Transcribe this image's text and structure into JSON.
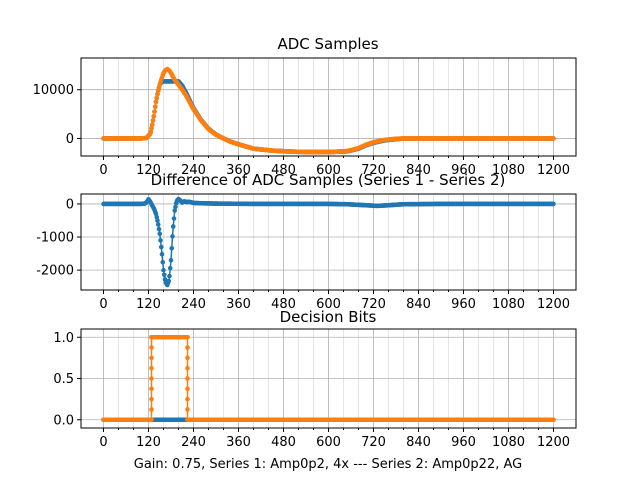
{
  "chart_data": [
    {
      "type": "scatter",
      "title": "ADC Samples",
      "x_ticks": [
        0,
        120,
        240,
        360,
        480,
        600,
        720,
        840,
        960,
        1080,
        1200
      ],
      "y_ticks": [
        0,
        10000
      ],
      "xlim": [
        -60,
        1260
      ],
      "ylim": [
        -3600,
        16500
      ],
      "grid": true,
      "series": [
        {
          "color": "#1f77b4",
          "x": [
            0,
            100,
            115,
            125,
            130,
            135,
            140,
            145,
            150,
            155,
            160,
            200,
            210,
            220,
            230,
            240,
            260,
            280,
            300,
            320,
            340,
            360,
            400,
            450,
            500,
            550,
            600,
            650,
            680,
            700,
            720,
            750,
            780,
            800,
            850,
            900,
            1000,
            1100,
            1200
          ],
          "y": [
            0,
            0,
            100,
            1000,
            2800,
            5000,
            7500,
            9500,
            11000,
            11600,
            11700,
            11700,
            10800,
            9400,
            7800,
            6200,
            3800,
            2000,
            800,
            0,
            -700,
            -1200,
            -2100,
            -2500,
            -2700,
            -2800,
            -2800,
            -2650,
            -2100,
            -1400,
            -900,
            -400,
            -150,
            -30,
            0,
            0,
            0,
            0,
            0
          ]
        },
        {
          "color": "#ff7f0e",
          "x": [
            0,
            100,
            115,
            125,
            130,
            135,
            140,
            145,
            150,
            155,
            160,
            165,
            170,
            175,
            180,
            185,
            190,
            200,
            210,
            220,
            230,
            240,
            260,
            280,
            300,
            320,
            340,
            360,
            400,
            450,
            500,
            550,
            600,
            650,
            680,
            700,
            720,
            750,
            780,
            800,
            850,
            900,
            1000,
            1100,
            1200
          ],
          "y": [
            0,
            0,
            100,
            1000,
            2800,
            5000,
            7500,
            9500,
            11000,
            12300,
            13400,
            14000,
            14200,
            14000,
            13400,
            12700,
            12000,
            11000,
            10000,
            8800,
            7400,
            6000,
            3700,
            1900,
            750,
            0,
            -700,
            -1200,
            -2100,
            -2500,
            -2700,
            -2800,
            -2800,
            -2600,
            -2000,
            -1300,
            -800,
            -300,
            -80,
            0,
            0,
            0,
            0,
            0,
            0
          ]
        }
      ]
    },
    {
      "type": "scatter",
      "title": "Difference of ADC Samples (Series 1 - Series 2)",
      "x_ticks": [
        0,
        120,
        240,
        360,
        480,
        600,
        720,
        840,
        960,
        1080,
        1200
      ],
      "y_ticks": [
        0,
        -1000,
        -2000
      ],
      "xlim": [
        -60,
        1260
      ],
      "ylim": [
        -2600,
        300
      ],
      "grid": true,
      "series": [
        {
          "color": "#1f77b4",
          "x": [
            0,
            100,
            110,
            115,
            120,
            125,
            130,
            135,
            140,
            145,
            150,
            155,
            160,
            165,
            170,
            175,
            180,
            185,
            190,
            195,
            200,
            205,
            210,
            215,
            220,
            230,
            240,
            260,
            300,
            400,
            500,
            600,
            650,
            700,
            730,
            760,
            800,
            900,
            1000,
            1100,
            1200
          ],
          "y": [
            0,
            0,
            10,
            50,
            140,
            60,
            -50,
            -150,
            -300,
            -550,
            -900,
            -1400,
            -2000,
            -2350,
            -2450,
            -2300,
            -1700,
            -800,
            -200,
            80,
            150,
            100,
            40,
            80,
            60,
            60,
            30,
            20,
            10,
            0,
            0,
            0,
            -10,
            -40,
            -60,
            -40,
            -10,
            0,
            0,
            0,
            0
          ]
        }
      ]
    },
    {
      "type": "scatter",
      "title": "Decision Bits",
      "xlabel": "Gain: 0.75, Series 1: Amp0p2, 4x --- Series 2: Amp0p22, AG",
      "x_ticks": [
        0,
        120,
        240,
        360,
        480,
        600,
        720,
        840,
        960,
        1080,
        1200
      ],
      "y_ticks": [
        0.0,
        0.5,
        1.0
      ],
      "y_tick_labels": [
        "0.0",
        "0.5",
        "1.0"
      ],
      "xlim": [
        -60,
        1260
      ],
      "ylim": [
        -0.1,
        1.1
      ],
      "grid": true,
      "series": [
        {
          "color": "#1f77b4",
          "x": [
            0,
            1200
          ],
          "y": [
            0,
            0
          ],
          "step": [
            [
              0,
              0
            ],
            [
              1200,
              0
            ]
          ]
        },
        {
          "color": "#ff7f0e",
          "x": [
            0,
            128,
            128,
            224,
            224,
            1200
          ],
          "y": [
            0,
            0,
            1,
            1,
            0,
            0
          ],
          "step": [
            [
              0,
              0
            ],
            [
              128,
              0
            ],
            [
              128,
              1
            ],
            [
              224,
              1
            ],
            [
              224,
              0
            ],
            [
              1200,
              0
            ]
          ]
        }
      ]
    }
  ]
}
